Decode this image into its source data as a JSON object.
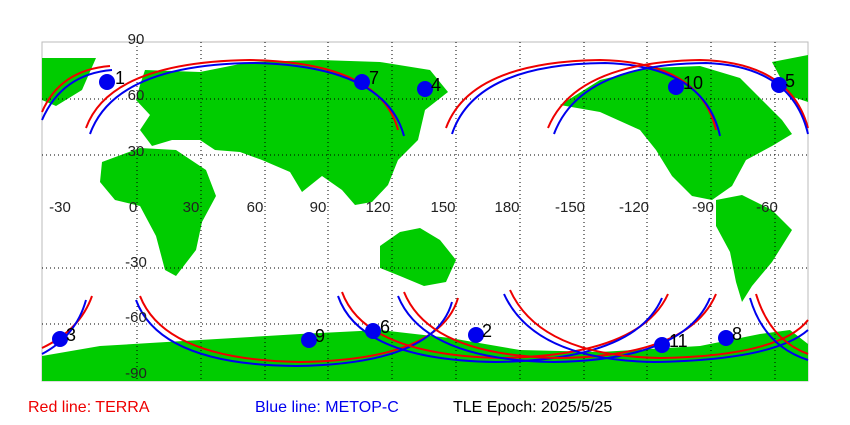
{
  "map": {
    "lat_labels": [
      "90",
      "60",
      "30",
      "-30",
      "-60",
      "-90"
    ],
    "lon_labels": [
      "-30",
      "0",
      "30",
      "60",
      "90",
      "120",
      "150",
      "180",
      "-150",
      "-120",
      "-90",
      "-60"
    ],
    "satellites": [
      "1",
      "7",
      "4",
      "10",
      "5",
      "3",
      "9",
      "6",
      "2",
      "11",
      "8"
    ],
    "legend": {
      "red": "Red line: TERRA",
      "blue": "Blue line: METOP-C",
      "epoch": "TLE Epoch: 2025/5/25"
    }
  }
}
